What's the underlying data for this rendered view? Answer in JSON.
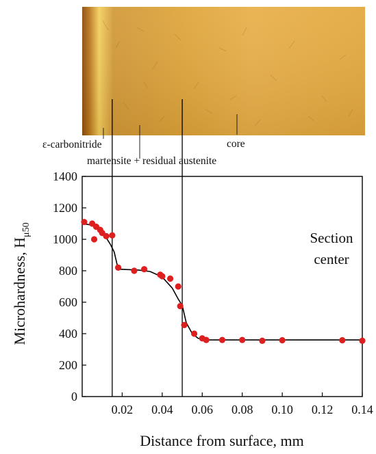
{
  "micrograph": {
    "annotations": {
      "carbonitride": "ε-carbonitride",
      "martensite": "martensite + residual austenite",
      "core": "core"
    }
  },
  "chart_data": {
    "type": "scatter",
    "xlabel": "Distance from surface, mm",
    "ylabel_main": "Microhardness, H",
    "ylabel_sub": "μ50",
    "annotation": [
      "Section",
      "center"
    ],
    "xlim": [
      0,
      0.14
    ],
    "ylim": [
      0,
      1400
    ],
    "x_ticks": [
      0.02,
      0.04,
      0.06,
      0.08,
      0.1,
      0.12,
      0.14
    ],
    "x_tick_labels": [
      "0.02",
      "0.04",
      "0.06",
      "0.08",
      "0.10",
      "0.12",
      "0.14"
    ],
    "y_ticks": [
      0,
      200,
      400,
      600,
      800,
      1000,
      1200,
      1400
    ],
    "y_tick_labels": [
      "0",
      "200",
      "400",
      "600",
      "800",
      "1000",
      "1200",
      "1400"
    ],
    "vlines": [
      0.015,
      0.05
    ],
    "grid": false,
    "series": [
      {
        "kind": "points",
        "color": "#dd1f1f",
        "points": [
          [
            0.001,
            1110
          ],
          [
            0.005,
            1100
          ],
          [
            0.006,
            1000
          ],
          [
            0.007,
            1080
          ],
          [
            0.009,
            1060
          ],
          [
            0.01,
            1040
          ],
          [
            0.012,
            1020
          ],
          [
            0.015,
            1025
          ],
          [
            0.018,
            820
          ],
          [
            0.026,
            800
          ],
          [
            0.031,
            810
          ],
          [
            0.039,
            775
          ],
          [
            0.04,
            765
          ],
          [
            0.044,
            750
          ],
          [
            0.048,
            700
          ],
          [
            0.049,
            575
          ],
          [
            0.051,
            455
          ],
          [
            0.056,
            400
          ],
          [
            0.06,
            370
          ],
          [
            0.062,
            360
          ],
          [
            0.07,
            360
          ],
          [
            0.08,
            360
          ],
          [
            0.09,
            355
          ],
          [
            0.1,
            358
          ],
          [
            0.13,
            358
          ],
          [
            0.14,
            355
          ]
        ]
      },
      {
        "kind": "curve",
        "color": "#000000",
        "points": [
          [
            0,
            1100
          ],
          [
            0.005,
            1090
          ],
          [
            0.01,
            1050
          ],
          [
            0.014,
            970
          ],
          [
            0.016,
            920
          ],
          [
            0.018,
            810
          ],
          [
            0.022,
            808
          ],
          [
            0.028,
            805
          ],
          [
            0.034,
            795
          ],
          [
            0.04,
            760
          ],
          [
            0.045,
            690
          ],
          [
            0.048,
            620
          ],
          [
            0.05,
            580
          ],
          [
            0.052,
            470
          ],
          [
            0.055,
            400
          ],
          [
            0.058,
            370
          ],
          [
            0.062,
            360
          ],
          [
            0.07,
            360
          ],
          [
            0.14,
            360
          ]
        ]
      }
    ]
  }
}
